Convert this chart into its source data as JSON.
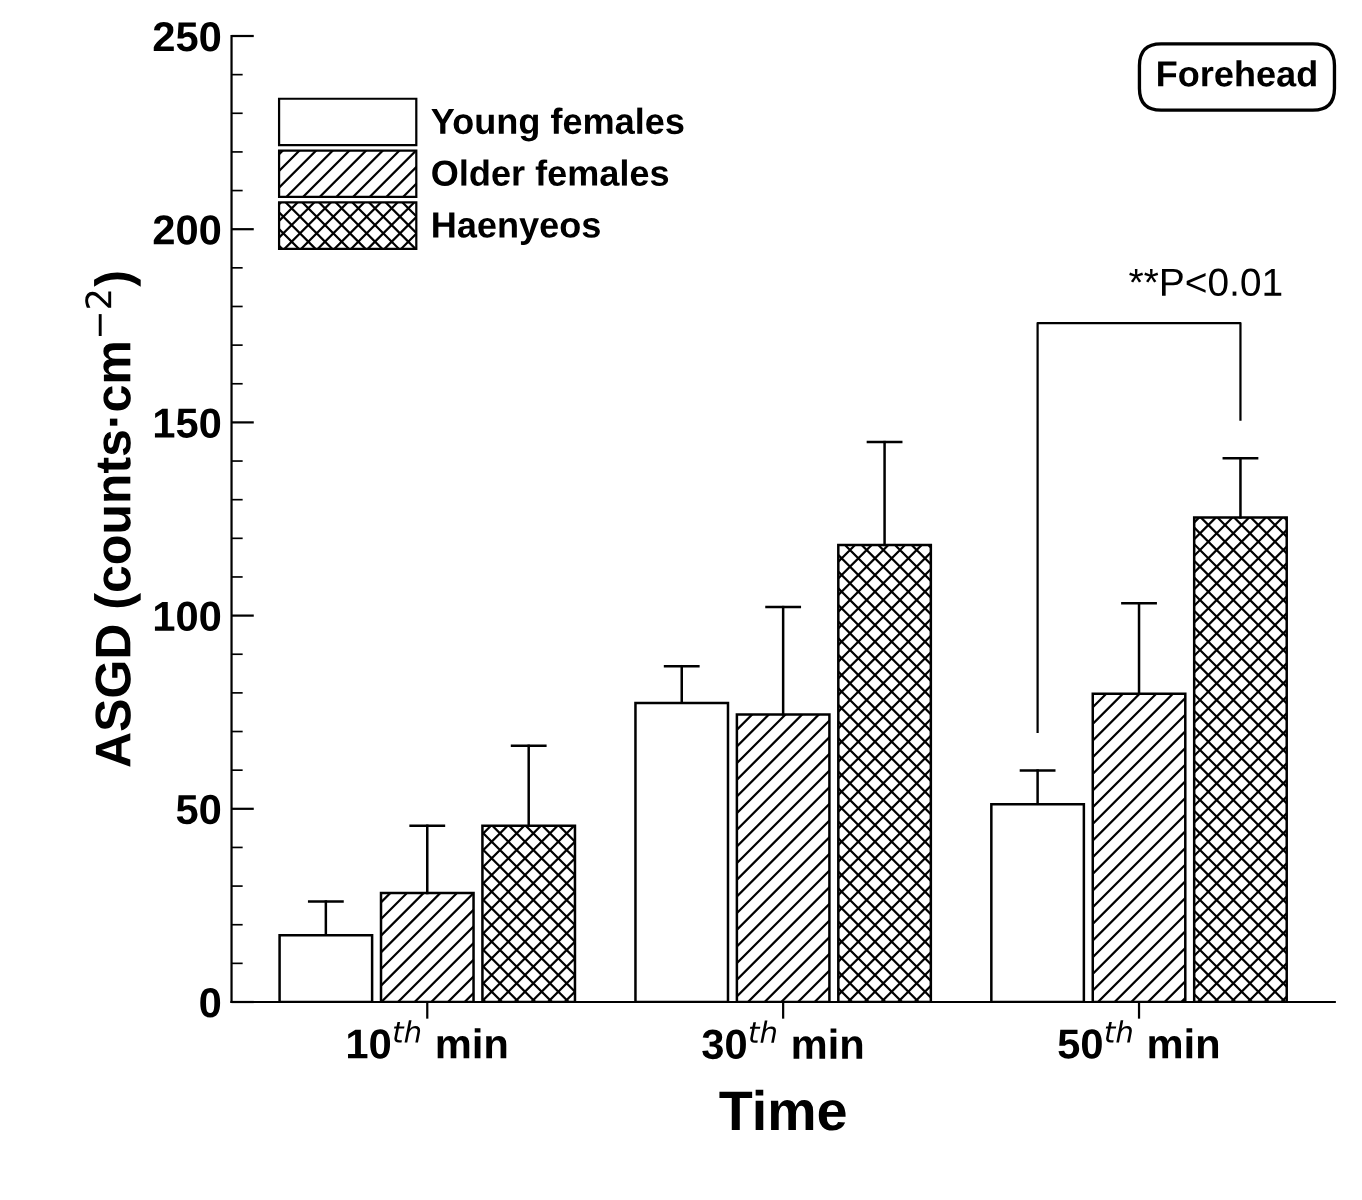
{
  "chart_data": {
    "type": "bar",
    "xlabel": "Time",
    "ylabel": "ASGD (counts·cm$^{−2}$)",
    "categories": [
      "10$^{th}$ min",
      "30$^{th}$ min",
      "50$^{th}$ min"
    ],
    "series": [
      {
        "name": "Young females",
        "color": "#ffffff",
        "values": [
          17.3,
          77.4,
          51.2
        ],
        "errors": [
          [
            17.3,
            26
          ],
          [
            77.4,
            86.9
          ],
          [
            51.2,
            59.9
          ]
        ]
      },
      {
        "name": "Older females",
        "color": "#000000",
        "values": [
          28.2,
          74.4,
          79.8
        ],
        "errors": [
          [
            28.2,
            45.6
          ],
          [
            74.4,
            102.2
          ],
          [
            79.8,
            103.2
          ]
        ]
      },
      {
        "name": "Haenyeos",
        "color": "#000000",
        "values": [
          45.6,
          118.3,
          125.4
        ],
        "errors": [
          [
            45.6,
            66.3
          ],
          [
            118.3,
            144.9
          ],
          [
            125.4,
            140.7
          ]
        ]
      }
    ],
    "ylim": [
      0,
      250
    ],
    "yticks": [
      0,
      50,
      100,
      150,
      200,
      250
    ],
    "grid": false,
    "legend": "top left",
    "annotations": [
      "Forehead",
      "**P<0.01"
    ]
  }
}
